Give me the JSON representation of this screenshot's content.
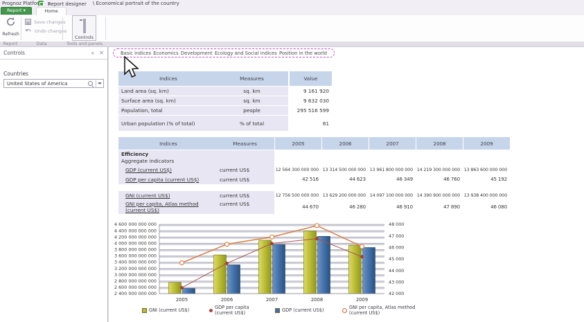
{
  "titlebar": {
    "app_name": "Prognoz Platform",
    "designer_menu": "Report designer",
    "caret": "▾",
    "report_path": "\\ Economical portrait of the country"
  },
  "ribbon": {
    "report_button": "Report ▾",
    "home_tab": "Home",
    "refresh_label": "Refresh",
    "save_label": "Save changes",
    "undo_label": "Undo changes",
    "controls_label": "Controls",
    "group_report": "Report",
    "group_data": "Data",
    "group_tools": "Tools and panels"
  },
  "panel": {
    "title": "Controls",
    "close_glyph": "✕",
    "collapse_glyph": "«",
    "countries_label": "Countries",
    "countries_value": "United States of America"
  },
  "tabs": [
    {
      "label": "Basic indices"
    },
    {
      "label": "Economics"
    },
    {
      "label": "Development"
    },
    {
      "label": "Ecology and Social indices"
    },
    {
      "label": "Position in the world"
    }
  ],
  "table1": {
    "headers": [
      "Indices",
      "Measures",
      "Value"
    ],
    "rows": [
      {
        "label": "Land area (sq. km)",
        "measure": "sq. km",
        "value": "9 161 920"
      },
      {
        "label": "Surface area (sq. km)",
        "measure": "sq. km",
        "value": "9 632 030"
      },
      {
        "label": "Population, total",
        "measure": "people",
        "value": "295 516 599"
      },
      {
        "label": "Urban population (% of total)",
        "measure": "% of total",
        "value": "81"
      }
    ]
  },
  "table2": {
    "headers": [
      "Indices",
      "Measures",
      "2005",
      "2006",
      "2007",
      "2008",
      "2009"
    ],
    "section": "Efficiency",
    "subsection": "Aggregate indicators",
    "rows": [
      {
        "label": "GDP (current US$)",
        "measure": "current US$",
        "values": [
          "12 564 300 000 000",
          "13 314 500 000 000",
          "13 961 800 000 000",
          "14 219 300 000 000",
          "13 863 600 000 000"
        ]
      },
      {
        "label": "GDP per capita (current US$)",
        "measure": "current US$",
        "values": [
          "42 516",
          "44 623",
          "46 349",
          "46 760",
          "45 192"
        ]
      },
      {
        "label": "GNI (current US$)",
        "measure": "current US$",
        "values": [
          "12 756 500 000 000",
          "13 629 200 000 000",
          "14 097 100 000 000",
          "14 390 900 000 000",
          "13 938 400 000 000"
        ]
      },
      {
        "label": "GNI per capita, Atlas method (current US$)",
        "measure": "current US$",
        "values": [
          "44 670",
          "46 280",
          "46 910",
          "47 890",
          "46 080"
        ]
      }
    ]
  },
  "chart_data": {
    "type": "bar",
    "subtype": "combo bar+line, dual axis",
    "categories": [
      "2005",
      "2006",
      "2007",
      "2008",
      "2009"
    ],
    "series": [
      {
        "name": "GNI (current US$)",
        "kind": "bar",
        "axis": "left",
        "color": "#b5b832",
        "values": [
          12756500000000,
          13629200000000,
          14097100000000,
          14390900000000,
          13938400000000
        ]
      },
      {
        "name": "GDP (current US$)",
        "kind": "bar",
        "axis": "left",
        "color": "#3f6ea8",
        "values": [
          12564300000000,
          13314500000000,
          13961800000000,
          14219300000000,
          13863600000000
        ]
      },
      {
        "name": "GDP per capita (current US$)",
        "kind": "line",
        "axis": "right",
        "color": "#a8524c",
        "marker": "filled-diamond",
        "values": [
          42516,
          44623,
          46349,
          46760,
          45192
        ]
      },
      {
        "name": "GNI per capita, Atlas method (current US$)",
        "kind": "line",
        "axis": "right",
        "color": "#dc8248",
        "marker": "open-circle",
        "values": [
          44670,
          46280,
          46910,
          47890,
          46080
        ]
      }
    ],
    "left_axis": {
      "min": 12400000000000,
      "max": 14600000000000,
      "step": 200000000000
    },
    "right_axis": {
      "min": 42000,
      "max": 48000,
      "step": 1000
    },
    "grid": true,
    "legend_position": "bottom",
    "legend": [
      {
        "swatch": "square",
        "color": "#b5b832",
        "label": "GNI (current US$)"
      },
      {
        "swatch": "filled-marker",
        "color": "#b5403a",
        "label": "GDP per capita (current US$)"
      },
      {
        "swatch": "square",
        "color": "#3f6ea8",
        "label": "GDP (current US$)"
      },
      {
        "swatch": "open-circle",
        "color": "#c86432",
        "label": "GNI per capita, Atlas method (current US$)"
      }
    ]
  },
  "colors": {
    "table_header": "#c7d5eb",
    "table_label_bg": "#e9e6f3",
    "selection_dash": "#c24fc2",
    "report_button_green": "#44984d",
    "bar_gni": "#b5b832",
    "bar_gdp": "#3f6ea8",
    "line_gdp_pc": "#a8524c",
    "line_gni_pc": "#dc8248"
  }
}
